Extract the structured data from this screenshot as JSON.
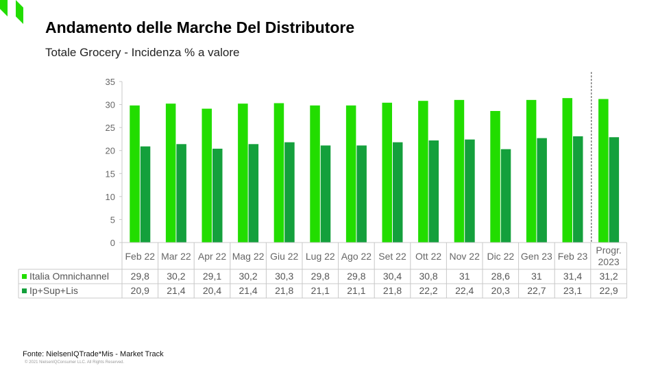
{
  "slide": {
    "title": "Andamento delle Marche Del Distributore",
    "subtitle": "Totale Grocery - Incidenza % a valore",
    "source": "Fonte: NielsenIQTrade*Mis - Market Track",
    "copyright": "© 2021 NielsenIQConsumer LLC. All Rights Reserved."
  },
  "colors": {
    "series_1": "#22dd00",
    "series_2": "#14a03c",
    "logo": "#22dd00",
    "grid_border": "#c8c8c8"
  },
  "chart_data": {
    "type": "bar",
    "categories": [
      "Feb 22",
      "Mar 22",
      "Apr 22",
      "Mag 22",
      "Giu 22",
      "Lug 22",
      "Ago 22",
      "Set 22",
      "Ott 22",
      "Nov 22",
      "Dic 22",
      "Gen 23",
      "Feb 23",
      "Progr. 2023"
    ],
    "series": [
      {
        "name": "Italia Omnichannel",
        "values": [
          29.8,
          30.2,
          29.1,
          30.2,
          30.3,
          29.8,
          29.8,
          30.4,
          30.8,
          31,
          28.6,
          31,
          31.4,
          31.2
        ],
        "labels": [
          "29,8",
          "30,2",
          "29,1",
          "30,2",
          "30,3",
          "29,8",
          "29,8",
          "30,4",
          "30,8",
          "31",
          "28,6",
          "31",
          "31,4",
          "31,2"
        ]
      },
      {
        "name": "Ip+Sup+Lis",
        "values": [
          20.9,
          21.4,
          20.4,
          21.4,
          21.8,
          21.1,
          21.1,
          21.8,
          22.2,
          22.4,
          20.3,
          22.7,
          23.1,
          22.9
        ],
        "labels": [
          "20,9",
          "21,4",
          "20,4",
          "21,4",
          "21,8",
          "21,1",
          "21,1",
          "21,8",
          "22,2",
          "22,4",
          "20,3",
          "22,7",
          "23,1",
          "22,9"
        ]
      }
    ],
    "ylim": [
      0,
      35
    ],
    "yticks": [
      0,
      5,
      10,
      15,
      20,
      25,
      30,
      35
    ],
    "grid": false,
    "legend": "data-table",
    "separator_before_category": "Progr. 2023",
    "xlabel": "",
    "ylabel": ""
  }
}
